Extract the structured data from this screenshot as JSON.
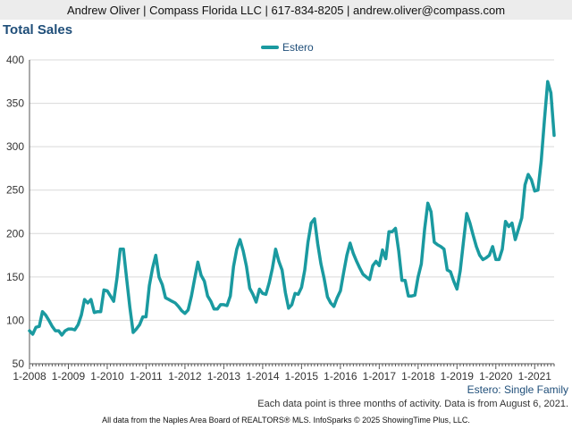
{
  "header": {
    "contact": "Andrew Oliver | Compass Florida LLC | 617-834-8205 | andrew.oliver@compass.com"
  },
  "chart_data": {
    "type": "line",
    "title": "Total Sales",
    "subtitle": "Estero: Single Family",
    "note": "Each data point is three months of activity. Data is from August 6, 2021.",
    "footer": "All data from the Naples Area Board of REALTORS® MLS. InfoSparks © 2025 ShowingTime Plus, LLC.",
    "xlabel": "",
    "ylabel": "",
    "ylim": [
      50,
      400
    ],
    "y_ticks": [
      50,
      100,
      150,
      200,
      250,
      300,
      350,
      400
    ],
    "x_ticks": [
      "1-2008",
      "1-2009",
      "1-2010",
      "1-2011",
      "1-2012",
      "1-2013",
      "1-2014",
      "1-2015",
      "1-2016",
      "1-2017",
      "1-2018",
      "1-2019",
      "1-2020",
      "1-2021"
    ],
    "x_start": "2008-01",
    "x_end": "2021-07",
    "grid": "horizontal",
    "legend_position": "top",
    "colors": {
      "series": "#1a9aa0",
      "grid": "#d9d9d9",
      "axis": "#555555"
    },
    "series": [
      {
        "name": "Estero",
        "x": [
          "2008-01",
          "2008-02",
          "2008-03",
          "2008-04",
          "2008-05",
          "2008-06",
          "2008-07",
          "2008-08",
          "2008-09",
          "2008-10",
          "2008-11",
          "2008-12",
          "2009-01",
          "2009-02",
          "2009-03",
          "2009-04",
          "2009-05",
          "2009-06",
          "2009-07",
          "2009-08",
          "2009-09",
          "2009-10",
          "2009-11",
          "2009-12",
          "2010-01",
          "2010-02",
          "2010-03",
          "2010-04",
          "2010-05",
          "2010-06",
          "2010-07",
          "2010-08",
          "2010-09",
          "2010-10",
          "2010-11",
          "2010-12",
          "2011-01",
          "2011-02",
          "2011-03",
          "2011-04",
          "2011-05",
          "2011-06",
          "2011-07",
          "2011-08",
          "2011-09",
          "2011-10",
          "2011-11",
          "2011-12",
          "2012-01",
          "2012-02",
          "2012-03",
          "2012-04",
          "2012-05",
          "2012-06",
          "2012-07",
          "2012-08",
          "2012-09",
          "2012-10",
          "2012-11",
          "2012-12",
          "2013-01",
          "2013-02",
          "2013-03",
          "2013-04",
          "2013-05",
          "2013-06",
          "2013-07",
          "2013-08",
          "2013-09",
          "2013-10",
          "2013-11",
          "2013-12",
          "2014-01",
          "2014-02",
          "2014-03",
          "2014-04",
          "2014-05",
          "2014-06",
          "2014-07",
          "2014-08",
          "2014-09",
          "2014-10",
          "2014-11",
          "2014-12",
          "2015-01",
          "2015-02",
          "2015-03",
          "2015-04",
          "2015-05",
          "2015-06",
          "2015-07",
          "2015-08",
          "2015-09",
          "2015-10",
          "2015-11",
          "2015-12",
          "2016-01",
          "2016-02",
          "2016-03",
          "2016-04",
          "2016-05",
          "2016-06",
          "2016-07",
          "2016-08",
          "2016-09",
          "2016-10",
          "2016-11",
          "2016-12",
          "2017-01",
          "2017-02",
          "2017-03",
          "2017-04",
          "2017-05",
          "2017-06",
          "2017-07",
          "2017-08",
          "2017-09",
          "2017-10",
          "2017-11",
          "2017-12",
          "2018-01",
          "2018-02",
          "2018-03",
          "2018-04",
          "2018-05",
          "2018-06",
          "2018-07",
          "2018-08",
          "2018-09",
          "2018-10",
          "2018-11",
          "2018-12",
          "2019-01",
          "2019-02",
          "2019-03",
          "2019-04",
          "2019-05",
          "2019-06",
          "2019-07",
          "2019-08",
          "2019-09",
          "2019-10",
          "2019-11",
          "2019-12",
          "2020-01",
          "2020-02",
          "2020-03",
          "2020-04",
          "2020-05",
          "2020-06",
          "2020-07",
          "2020-08",
          "2020-09",
          "2020-10",
          "2020-11",
          "2020-12",
          "2021-01",
          "2021-02",
          "2021-03",
          "2021-04",
          "2021-05",
          "2021-06",
          "2021-07"
        ],
        "values": [
          88,
          84,
          92,
          93,
          110,
          106,
          100,
          93,
          88,
          88,
          83,
          88,
          90,
          90,
          89,
          95,
          106,
          124,
          120,
          124,
          109,
          110,
          110,
          135,
          134,
          128,
          122,
          148,
          182,
          182,
          148,
          115,
          86,
          90,
          95,
          104,
          104,
          140,
          160,
          175,
          150,
          141,
          126,
          124,
          122,
          120,
          116,
          111,
          108,
          112,
          128,
          148,
          167,
          152,
          145,
          128,
          122,
          113,
          113,
          118,
          118,
          117,
          128,
          162,
          182,
          193,
          180,
          162,
          137,
          130,
          121,
          136,
          131,
          130,
          143,
          160,
          182,
          168,
          158,
          132,
          114,
          118,
          131,
          130,
          138,
          158,
          190,
          212,
          217,
          188,
          165,
          148,
          127,
          120,
          116,
          126,
          134,
          155,
          175,
          189,
          177,
          168,
          160,
          153,
          150,
          147,
          163,
          168,
          163,
          181,
          171,
          202,
          202,
          206,
          180,
          146,
          146,
          128,
          128,
          129,
          150,
          165,
          205,
          235,
          225,
          190,
          187,
          185,
          182,
          158,
          156,
          145,
          136,
          157,
          190,
          223,
          212,
          198,
          185,
          175,
          170,
          172,
          175,
          185,
          170,
          170,
          182,
          214,
          208,
          212,
          193,
          205,
          218,
          256,
          268,
          262,
          249,
          250,
          283,
          330,
          375,
          362,
          313
        ]
      }
    ]
  }
}
